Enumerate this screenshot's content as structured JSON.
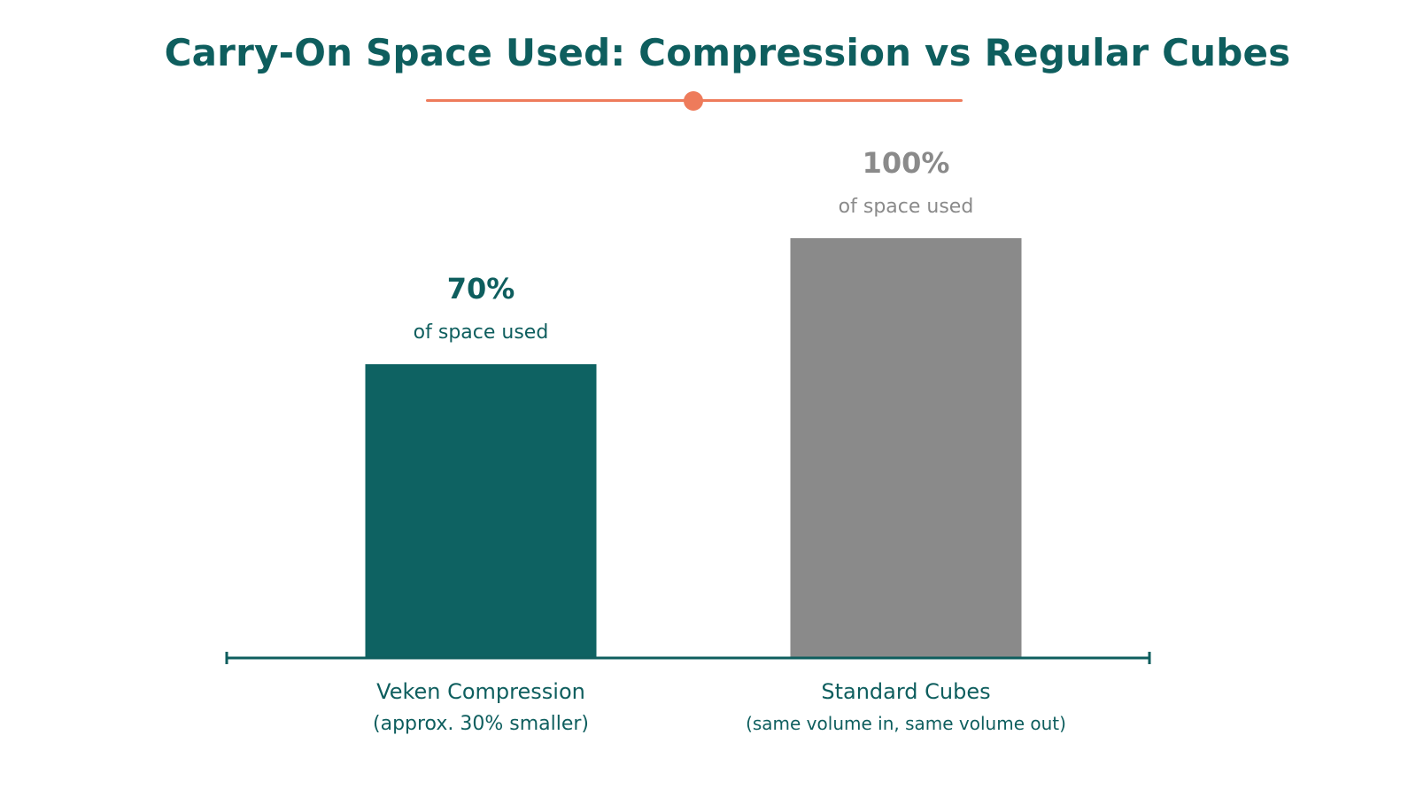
{
  "chart_data": {
    "type": "bar",
    "title": "Carry-On Space Used: Compression vs Regular Cubes",
    "categories": [
      "Veken Compression",
      "Standard Cubes"
    ],
    "category_sublabels": [
      "(approx. 30% smaller)",
      "(same volume in, same volume out)"
    ],
    "values": [
      70,
      100
    ],
    "value_labels": [
      "70%",
      "100%"
    ],
    "value_sublabels": [
      "of space used",
      "of space used"
    ],
    "unit": "%",
    "ylim": [
      0,
      100
    ],
    "grid": false,
    "legend": "none",
    "xlabel": "",
    "ylabel": ""
  },
  "colors": {
    "title": "#0e5e5e",
    "accent": "#ee7b5b",
    "bars": [
      "#0e6262",
      "#8a8a8a"
    ],
    "value_labels": [
      "#0e5e5e",
      "#8a8a8a"
    ],
    "value_sublabels": [
      "#0e5e5e",
      "#8a8a8a"
    ],
    "axis": "#0e5e5e",
    "category_labels": "#0e5e5e"
  }
}
